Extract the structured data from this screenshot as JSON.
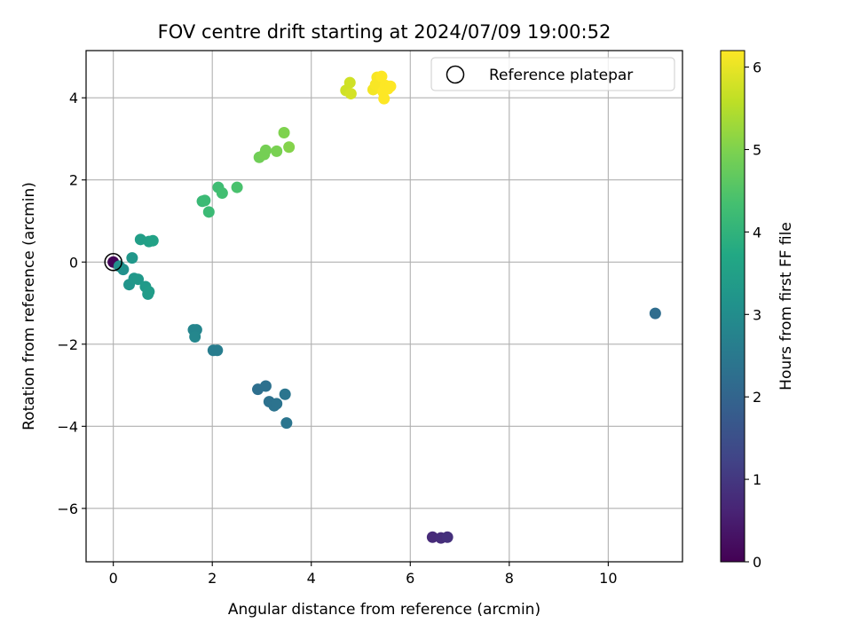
{
  "chart_data": {
    "type": "scatter",
    "title": "FOV centre drift starting at 2024/07/09 19:00:52",
    "xlabel": "Angular distance from reference (arcmin)",
    "ylabel": "Rotation from reference (arcmin)",
    "xlim": [
      -0.55,
      11.5
    ],
    "ylim": [
      -7.3,
      5.15
    ],
    "xticks": [
      0,
      2,
      4,
      6,
      8,
      10
    ],
    "yticks": [
      -6,
      -4,
      -2,
      0,
      2,
      4
    ],
    "xtick_labels": [
      "0",
      "2",
      "4",
      "6",
      "8",
      "10"
    ],
    "ytick_labels": [
      "−6",
      "−4",
      "−2",
      "0",
      "2",
      "4"
    ],
    "grid": true,
    "legend_position": "top-right",
    "legend_label": "Reference platepar",
    "reference_point": {
      "x": 0,
      "y": 0
    },
    "colorbar": {
      "label": "Hours from first FF file",
      "range": [
        0,
        6.2
      ],
      "ticks": [
        0,
        1,
        2,
        3,
        4,
        5,
        6
      ],
      "colormap": "viridis"
    },
    "points": [
      {
        "x": 0.0,
        "y": 0.0,
        "h": 0.05
      },
      {
        "x": 6.45,
        "y": -6.7,
        "h": 0.75
      },
      {
        "x": 6.62,
        "y": -6.72,
        "h": 0.8
      },
      {
        "x": 6.75,
        "y": -6.7,
        "h": 0.85
      },
      {
        "x": 10.95,
        "y": -1.25,
        "h": 2.2
      },
      {
        "x": 2.92,
        "y": -3.1,
        "h": 2.25
      },
      {
        "x": 3.08,
        "y": -3.02,
        "h": 2.3
      },
      {
        "x": 3.15,
        "y": -3.4,
        "h": 2.3
      },
      {
        "x": 3.25,
        "y": -3.5,
        "h": 2.35
      },
      {
        "x": 3.3,
        "y": -3.45,
        "h": 2.35
      },
      {
        "x": 3.47,
        "y": -3.22,
        "h": 2.4
      },
      {
        "x": 3.5,
        "y": -3.92,
        "h": 2.4
      },
      {
        "x": 2.02,
        "y": -2.15,
        "h": 2.6
      },
      {
        "x": 2.1,
        "y": -2.15,
        "h": 2.6
      },
      {
        "x": 1.62,
        "y": -1.65,
        "h": 2.8
      },
      {
        "x": 1.68,
        "y": -1.65,
        "h": 2.8
      },
      {
        "x": 1.65,
        "y": -1.82,
        "h": 2.85
      },
      {
        "x": 0.12,
        "y": -0.1,
        "h": 3.05
      },
      {
        "x": 0.2,
        "y": -0.18,
        "h": 3.1
      },
      {
        "x": 0.32,
        "y": -0.55,
        "h": 3.2
      },
      {
        "x": 0.38,
        "y": 0.1,
        "h": 3.25
      },
      {
        "x": 0.42,
        "y": -0.4,
        "h": 3.25
      },
      {
        "x": 0.5,
        "y": -0.42,
        "h": 3.3
      },
      {
        "x": 0.65,
        "y": -0.6,
        "h": 3.35
      },
      {
        "x": 0.7,
        "y": -0.78,
        "h": 3.35
      },
      {
        "x": 0.72,
        "y": -0.72,
        "h": 3.4
      },
      {
        "x": 0.55,
        "y": 0.55,
        "h": 3.45
      },
      {
        "x": 0.72,
        "y": 0.5,
        "h": 3.5
      },
      {
        "x": 0.8,
        "y": 0.52,
        "h": 3.55
      },
      {
        "x": 1.8,
        "y": 1.48,
        "h": 4.15
      },
      {
        "x": 1.85,
        "y": 1.5,
        "h": 4.2
      },
      {
        "x": 1.93,
        "y": 1.22,
        "h": 4.2
      },
      {
        "x": 2.12,
        "y": 1.82,
        "h": 4.25
      },
      {
        "x": 2.2,
        "y": 1.68,
        "h": 4.3
      },
      {
        "x": 2.5,
        "y": 1.82,
        "h": 4.4
      },
      {
        "x": 2.95,
        "y": 2.55,
        "h": 4.85
      },
      {
        "x": 3.05,
        "y": 2.62,
        "h": 4.9
      },
      {
        "x": 3.08,
        "y": 2.72,
        "h": 4.9
      },
      {
        "x": 3.3,
        "y": 2.7,
        "h": 4.95
      },
      {
        "x": 3.45,
        "y": 3.15,
        "h": 5.0
      },
      {
        "x": 3.55,
        "y": 2.8,
        "h": 5.05
      },
      {
        "x": 4.7,
        "y": 4.18,
        "h": 5.75
      },
      {
        "x": 4.78,
        "y": 4.37,
        "h": 5.75
      },
      {
        "x": 4.8,
        "y": 4.1,
        "h": 5.8
      },
      {
        "x": 5.25,
        "y": 4.2,
        "h": 6.1
      },
      {
        "x": 5.3,
        "y": 4.32,
        "h": 6.15
      },
      {
        "x": 5.33,
        "y": 4.5,
        "h": 6.15
      },
      {
        "x": 5.38,
        "y": 4.28,
        "h": 6.15
      },
      {
        "x": 5.42,
        "y": 4.52,
        "h": 6.2
      },
      {
        "x": 5.45,
        "y": 4.15,
        "h": 6.2
      },
      {
        "x": 5.47,
        "y": 3.98,
        "h": 6.2
      },
      {
        "x": 5.5,
        "y": 4.3,
        "h": 6.2
      },
      {
        "x": 5.55,
        "y": 4.22,
        "h": 6.2
      },
      {
        "x": 5.6,
        "y": 4.28,
        "h": 6.2
      }
    ]
  }
}
